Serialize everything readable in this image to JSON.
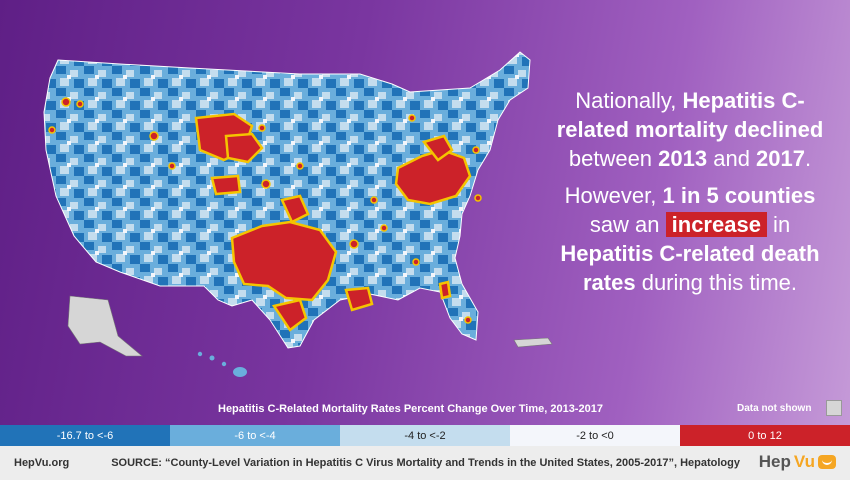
{
  "headline": {
    "p1_pre": "Nationally, ",
    "p1_bold": "Hepatitis C-related mortality declined",
    "p1_mid": " between ",
    "p1_year1": "2013",
    "p1_and": " and ",
    "p1_year2": "2017",
    "p1_end": ".",
    "p2_pre": "However, ",
    "p2_bold": "1 in 5 counties",
    "p2_mid": " saw an ",
    "p2_highlight": "increase",
    "p2_in": " in ",
    "p2_bold2": "Hepatitis C-related death rates",
    "p2_end": " during this time."
  },
  "legend": {
    "title": "Hepatitis C-Related Mortality Rates Percent Change Over Time, 2013-2017",
    "not_shown": "Data not shown",
    "bins": [
      {
        "label": "-16.7 to <-6",
        "color": "#2173b8",
        "text_color": "#ffffff"
      },
      {
        "label": "-6 to <-4",
        "color": "#6aaedc",
        "text_color": "#ffffff"
      },
      {
        "label": "-4 to <-2",
        "color": "#c4ddee",
        "text_color": "#222222"
      },
      {
        "label": "-2 to <0",
        "color": "#f4f6fb",
        "text_color": "#222222"
      },
      {
        "label": "0 to 12",
        "color": "#cc2229",
        "text_color": "#ffffff"
      }
    ]
  },
  "footer": {
    "site": "HepVu.org",
    "source": "SOURCE: “County-Level Variation in Hepatitis C Virus Mortality and Trends in the United States, 2005-2017”, Hepatology",
    "logo_a": "Hep",
    "logo_b": "Vu"
  },
  "map": {
    "icon": "us-county-choropleth",
    "colors": {
      "dark": "#2173b8",
      "mid": "#6aaedc",
      "light": "#c4ddee",
      "pale": "#f4f6fb",
      "increase": "#cc2229",
      "outline": "#f5c400",
      "no_data": "#d6d6d6"
    }
  }
}
